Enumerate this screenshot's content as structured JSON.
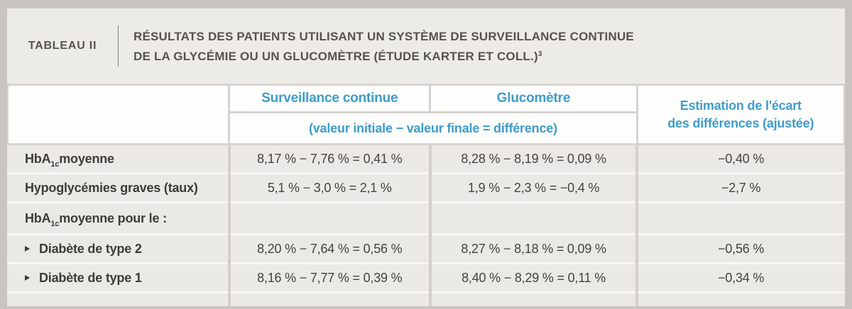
{
  "band": {
    "tag": "TABLEAU II",
    "title_line1": "RÉSULTATS DES PATIENTS UTILISANT UN SYSTÈME DE SURVEILLANCE CONTINUE",
    "title_line2": "DE LA GLYCÉMIE OU UN GLUCOMÈTRE (ÉTUDE KARTER ET COLL.)",
    "title_footnote": "3"
  },
  "columns": {
    "cgm": "Surveillance continue",
    "bgm": "Glucomètre",
    "formula": "(valeur initiale − valeur finale = différence)",
    "estimation_line1": "Estimation de l'écart",
    "estimation_line2": "des différences (ajustée)"
  },
  "rows": [
    {
      "label": {
        "pre": "HbA",
        "sub": "1c",
        "post": " moyenne"
      },
      "cgm": "8,17 % − 7,76 % = 0,41 %",
      "bgm": "8,28 % − 8,19 % = 0,09 %",
      "diff": "−0,40 %"
    },
    {
      "label": {
        "pre": "Hypoglycémies graves (taux)"
      },
      "cgm": "5,1 % − 3,0 % = 2,1 %",
      "bgm": "1,9 % − 2,3 % = −0,4 %",
      "diff": "−2,7 %"
    },
    {
      "label": {
        "pre": "HbA",
        "sub": "1c",
        "post": " moyenne pour le :"
      },
      "cgm": "",
      "bgm": "",
      "diff": ""
    },
    {
      "label": {
        "pre": "Diabète de type 2"
      },
      "bullet": true,
      "cgm": "8,20 % − 7,64 % = 0,56 %",
      "bgm": "8,27 % − 8,18 % = 0,09 %",
      "diff": "−0,56 %"
    },
    {
      "label": {
        "pre": "Diabète de type 1"
      },
      "bullet": true,
      "cgm": "8,16 % − 7,77 % = 0,39 %",
      "bgm": "8,40 % − 8,29 % = 0,11 %",
      "diff": "−0,34 %"
    }
  ],
  "colors": {
    "accent_blue": "#3e9dc9",
    "frame_gray": "#c8c5c0",
    "panel_gray": "#edebe8",
    "text_dark": "#56534e"
  }
}
